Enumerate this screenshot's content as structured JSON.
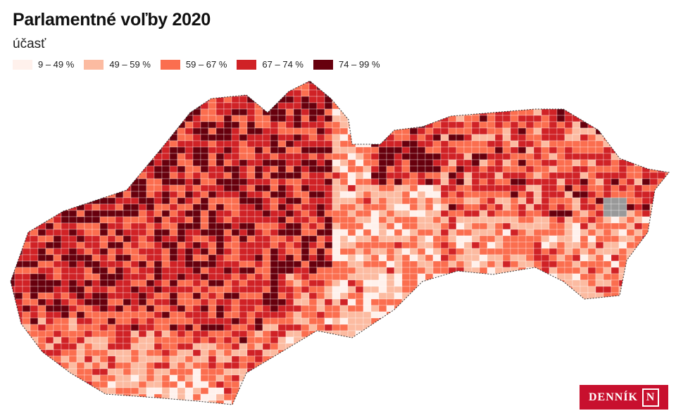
{
  "header": {
    "title": "Parlamentné voľby 2020",
    "subtitle": "účasť"
  },
  "legend": [
    {
      "label": "9 – 49 %",
      "color": "#fff1ec"
    },
    {
      "label": "49 – 59 %",
      "color": "#fcbba1"
    },
    {
      "label": "59 – 67 %",
      "color": "#fb6e4f"
    },
    {
      "label": "67 – 74 %",
      "color": "#d02226"
    },
    {
      "label": "74 – 99 %",
      "color": "#67000d"
    }
  ],
  "logo": {
    "text": "DENNÍK",
    "mark": "N"
  }
}
